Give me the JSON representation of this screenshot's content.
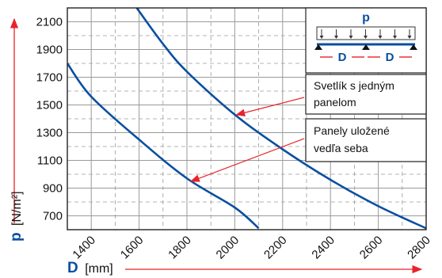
{
  "chart_data": {
    "type": "line",
    "xlabel": {
      "symbol": "D",
      "unit": "[mm]"
    },
    "ylabel": {
      "symbol": "p",
      "unit": "[N/m²]"
    },
    "xlim": [
      1300,
      2800
    ],
    "ylim": [
      600,
      2200
    ],
    "x_ticks": [
      "1400",
      "1600",
      "1800",
      "2000",
      "2200",
      "2400",
      "2600",
      "2800"
    ],
    "y_ticks": [
      "700",
      "900",
      "1100",
      "1300",
      "1500",
      "1700",
      "1900",
      "2100"
    ],
    "grid": true,
    "series": [
      {
        "name": "Svetlík s jedným panelom",
        "color": "#0a4fa0",
        "points": [
          [
            1590,
            2200
          ],
          [
            1700,
            1940
          ],
          [
            1800,
            1740
          ],
          [
            2000,
            1430
          ],
          [
            2200,
            1180
          ],
          [
            2400,
            960
          ],
          [
            2600,
            770
          ],
          [
            2800,
            610
          ]
        ]
      },
      {
        "name": "Panely uložené vedľa seba",
        "color": "#0a4fa0",
        "points": [
          [
            1300,
            1800
          ],
          [
            1400,
            1560
          ],
          [
            1600,
            1250
          ],
          [
            1800,
            970
          ],
          [
            2000,
            760
          ],
          [
            2100,
            610
          ]
        ]
      }
    ],
    "annotations": [
      {
        "lines": [
          "Svetlík s jedným",
          "panelom"
        ],
        "points_to_x": 2000,
        "points_to_y": 1440
      },
      {
        "lines": [
          "Panely uložené",
          "vedľa seba"
        ],
        "points_to_x": 1810,
        "points_to_y": 960
      }
    ],
    "legend_box": {
      "title": "p",
      "span_label": "D"
    },
    "colors": {
      "curve": "#0a4fa0",
      "arrow": "#e8232a",
      "grid": "#9a9a9a",
      "axis_label": "#0a4fa0"
    }
  }
}
